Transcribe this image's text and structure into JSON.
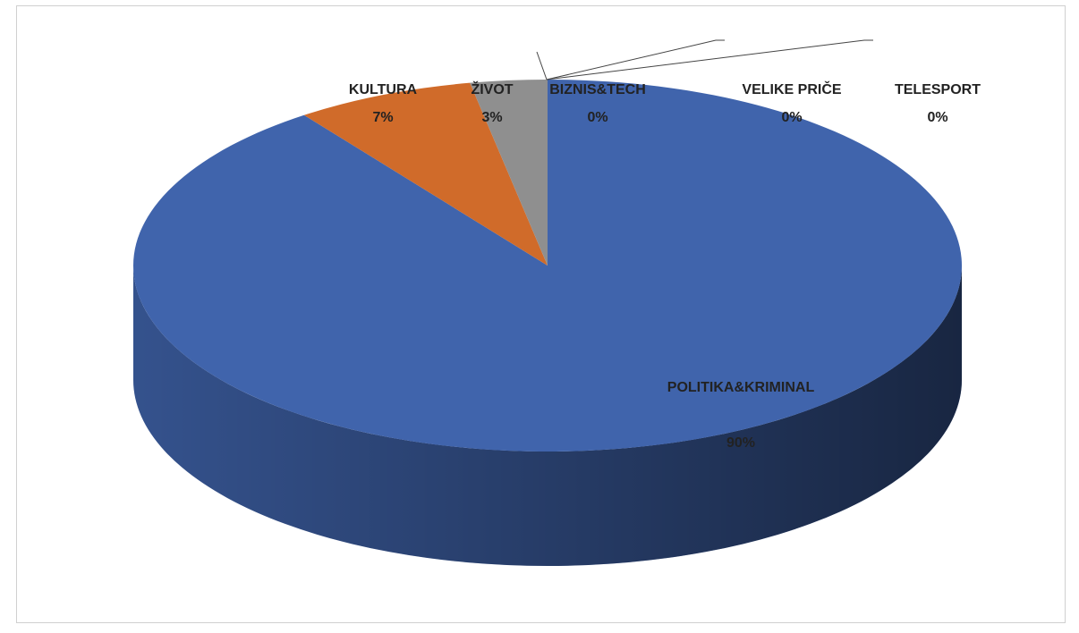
{
  "chart_data": {
    "type": "pie",
    "three_d": true,
    "categories": [
      "POLITIKA&KRIMINAL",
      "KULTURA",
      "ŽIVOT",
      "BIZNIS&TECH",
      "VELIKE PRIČE",
      "TELESPORT"
    ],
    "values": [
      90,
      7,
      3,
      0,
      0,
      0
    ],
    "value_labels": [
      "90%",
      "7%",
      "3%",
      "0%",
      "0%",
      "0%"
    ],
    "colors": [
      "#4064ac",
      "#d06b2a",
      "#8f8f8f",
      "#ffc000",
      "#5b9bd5",
      "#70ad47"
    ]
  }
}
